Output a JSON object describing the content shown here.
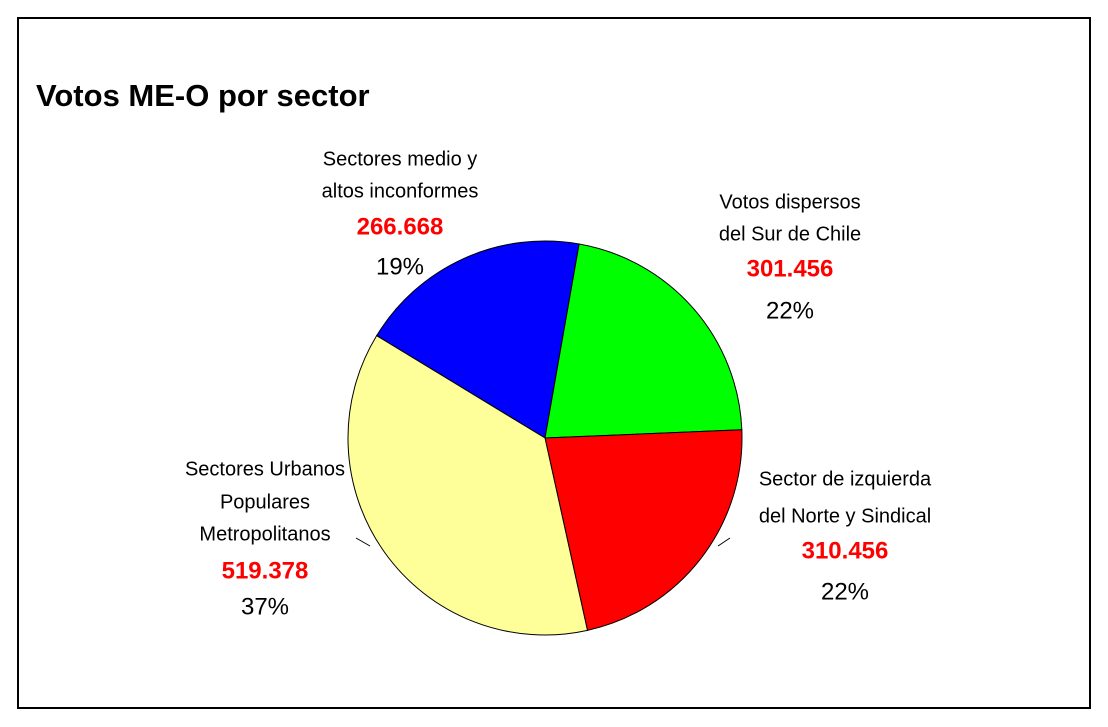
{
  "chart_data": {
    "type": "pie",
    "title": "Votos ME-O por sector",
    "categories": [
      [
        "Sectores medio y",
        "altos inconformes"
      ],
      [
        "Votos dispersos",
        "del Sur de Chile"
      ],
      [
        "Sector de izquierda",
        "del Norte y Sindical"
      ],
      [
        "Sectores Urbanos",
        "Populares",
        "Metropolitanos"
      ]
    ],
    "values": [
      266668,
      301456,
      310456,
      519378
    ],
    "value_labels": [
      "266.668",
      "301.456",
      "310.456",
      "519.378"
    ],
    "percents": [
      19,
      22,
      22,
      37
    ],
    "percent_labels": [
      "19%",
      "22%",
      "22%",
      "37%"
    ],
    "colors": [
      "#0000ff",
      "#00ff00",
      "#ff0000",
      "#ffff99"
    ]
  }
}
